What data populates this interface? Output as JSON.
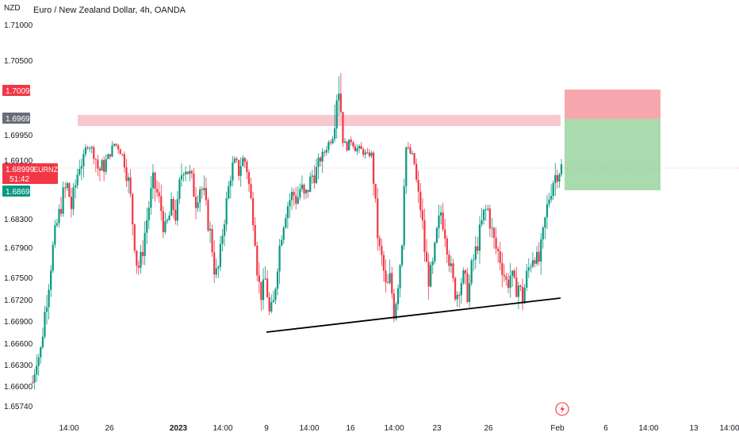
{
  "header": {
    "title": "Euro / New Zealand Dollar, 4h, OANDA",
    "currency": "NZD"
  },
  "colors": {
    "up": "#089981",
    "down": "#f23645",
    "resistance_zone": "#f7b6bd",
    "stop_zone": "#f7a1a9",
    "target_zone": "#a4d9ab",
    "trendline": "#000000"
  },
  "badges": {
    "stop_price": "1.70090",
    "resistance_price": "1.69690",
    "current_price": "1.68999",
    "symbol": "EURNZD",
    "countdown": "51:42",
    "target_price": "1.68690"
  },
  "chart_data": {
    "type": "candlestick",
    "title": "Euro / New Zealand Dollar, 4h, OANDA",
    "y_range": [
      1.6545,
      1.7145
    ],
    "y_ticks": [
      "1.71000",
      "1.70500",
      "1.69950",
      "1.69100",
      "1.68300",
      "1.67900",
      "1.67500",
      "1.67200",
      "1.66900",
      "1.66600",
      "1.66300",
      "1.66000",
      "1.65740"
    ],
    "x_ticks": [
      {
        "label": "14:00",
        "bold": false
      },
      {
        "label": "26",
        "bold": false
      },
      {
        "label": "2023",
        "bold": true
      },
      {
        "label": "14:00",
        "bold": false
      },
      {
        "label": "9",
        "bold": false
      },
      {
        "label": "14:00",
        "bold": false
      },
      {
        "label": "16",
        "bold": false
      },
      {
        "label": "14:00",
        "bold": false
      },
      {
        "label": "23",
        "bold": false
      },
      {
        "label": "26",
        "bold": false
      },
      {
        "label": "Feb",
        "bold": false
      },
      {
        "label": "6",
        "bold": false
      },
      {
        "label": "14:00",
        "bold": false
      },
      {
        "label": "13",
        "bold": false
      },
      {
        "label": "14:00",
        "bold": false
      }
    ],
    "close_path": [
      1.6605,
      1.664,
      1.6645,
      1.6695,
      1.6735,
      1.678,
      1.6815,
      1.684,
      1.6865,
      1.6875,
      1.6845,
      1.6875,
      1.6905,
      1.691,
      1.6965,
      1.6955,
      1.692,
      1.6895,
      1.69,
      1.691,
      1.6935,
      1.6965,
      1.6955,
      1.693,
      1.69,
      1.687,
      1.681,
      1.676,
      1.6775,
      1.6815,
      1.685,
      1.688,
      1.6865,
      1.6845,
      1.681,
      1.683,
      1.685,
      1.683,
      1.6885,
      1.6905,
      1.6895,
      1.688,
      1.6855,
      1.6875,
      1.6865,
      1.683,
      1.68,
      1.675,
      1.6765,
      1.682,
      1.6855,
      1.6895,
      1.6905,
      1.6895,
      1.6915,
      1.6905,
      1.686,
      1.6825,
      1.6745,
      1.6725,
      1.675,
      1.6695,
      1.6715,
      1.677,
      1.681,
      1.684,
      1.6855,
      1.6865,
      1.6855,
      1.6875,
      1.6855,
      1.6875,
      1.689,
      1.6895,
      1.6915,
      1.6935,
      1.6965,
      1.6985,
      1.7025,
      1.7035,
      1.6965,
      1.6955,
      1.698,
      1.695,
      1.6945,
      1.694,
      1.692,
      1.694,
      1.686,
      1.679,
      1.677,
      1.673,
      1.675,
      1.67,
      1.6745,
      1.6795,
      1.6955,
      1.6935,
      1.6915,
      1.6865,
      1.684,
      1.6775,
      1.6745,
      1.6765,
      1.681,
      1.684,
      1.6815,
      1.678,
      1.6745,
      1.6725,
      1.6745,
      1.675,
      1.6725,
      1.6765,
      1.6785,
      1.681,
      1.6835,
      1.6845,
      1.6815,
      1.679,
      1.678,
      1.676,
      1.674,
      1.6755,
      1.6735,
      1.674,
      1.672,
      1.675,
      1.677,
      1.6785,
      1.6765,
      1.6795,
      1.6835,
      1.6865,
      1.6885,
      1.6895,
      1.69
    ]
  },
  "x_axis_icon": "lightning-icon"
}
